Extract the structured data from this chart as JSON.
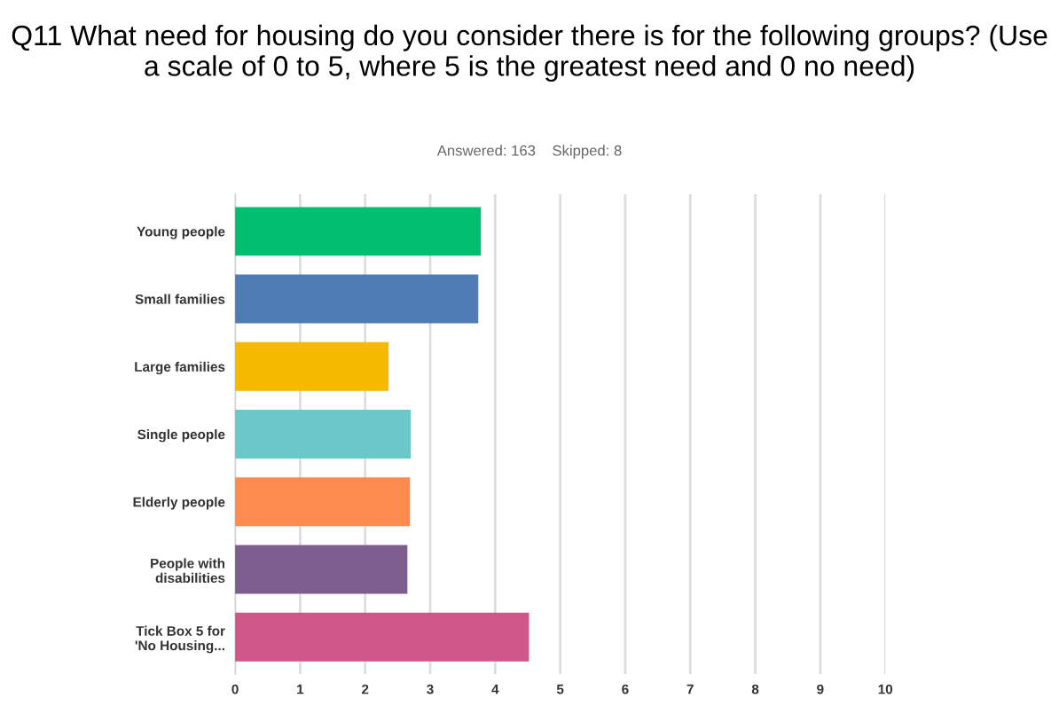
{
  "chart_data": {
    "type": "bar",
    "orientation": "horizontal",
    "title": "Q11 What need for housing do you consider there is for the following groups? (Use a scale of 0 to 5, where 5 is the greatest need and 0 no need)",
    "subtitle": "Answered: 163    Skipped: 8",
    "categories": [
      "Young people",
      "Small families",
      "Large families",
      "Single people",
      "Elderly people",
      "People with\ndisabilities",
      "Tick Box 5 for\n'No Housing..."
    ],
    "values": [
      3.78,
      3.74,
      2.36,
      2.7,
      2.69,
      2.65,
      4.52
    ],
    "colors": [
      "#00bf6f",
      "#507cb6",
      "#f5b900",
      "#6bc8c8",
      "#fd8a4f",
      "#7d5e8e",
      "#d0578a"
    ],
    "xlim": [
      0,
      10
    ],
    "xticks": [
      0,
      1,
      2,
      3,
      4,
      5,
      6,
      7,
      8,
      9,
      10
    ],
    "grid": "x",
    "legend": false
  }
}
